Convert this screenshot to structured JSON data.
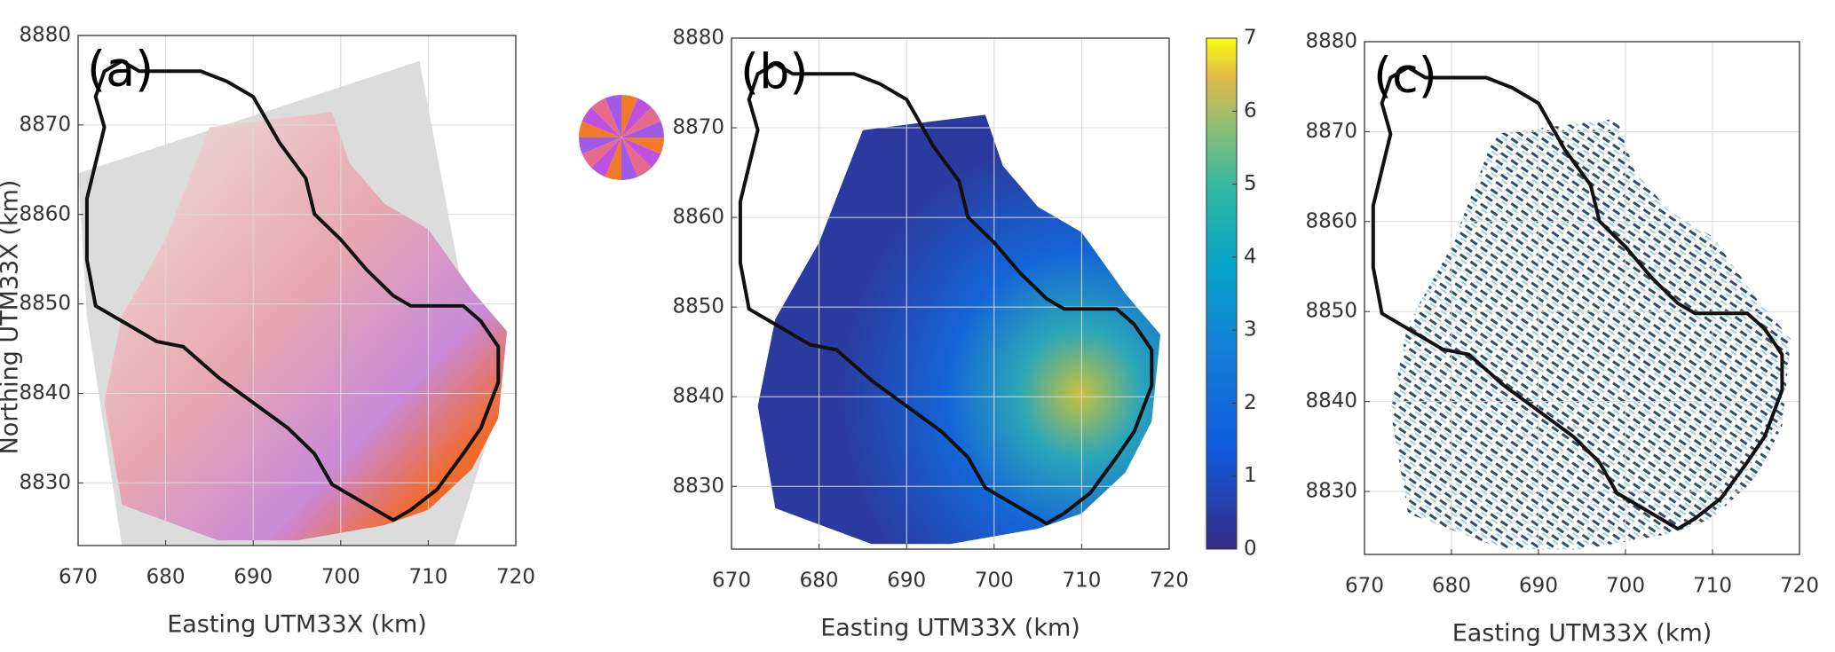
{
  "chart_data": [
    {
      "type": "map",
      "label": "(a)",
      "xlabel": "Easting UTM33X (km)",
      "ylabel": "Northing UTM33X (km)",
      "xlim": [
        670,
        720
      ],
      "ylim": [
        8823,
        8880
      ],
      "xticks": [
        670,
        680,
        690,
        700,
        710,
        720
      ],
      "yticks": [
        8830,
        8840,
        8850,
        8860,
        8870,
        8880
      ],
      "grid": true
    },
    {
      "type": "map",
      "label": "(b)",
      "xlabel": "Easting UTM33X (km)",
      "xlim": [
        670,
        720
      ],
      "ylim": [
        8823,
        8880
      ],
      "xticks": [
        670,
        680,
        690,
        700,
        710,
        720
      ],
      "yticks": [
        8830,
        8840,
        8850,
        8860,
        8870,
        8880
      ],
      "grid": true,
      "colorbar": {
        "ylim": [
          0,
          7
        ],
        "yticks": [
          0,
          1,
          2,
          3,
          4,
          5,
          6,
          7
        ]
      }
    },
    {
      "type": "map",
      "label": "(c)",
      "xlabel": "Easting UTM33X (km)",
      "xlim": [
        670,
        720
      ],
      "ylim": [
        8823,
        8880
      ],
      "xticks": [
        670,
        680,
        690,
        700,
        710,
        720
      ],
      "yticks": [
        8830,
        8840,
        8850,
        8860,
        8870,
        8880
      ],
      "grid": true
    }
  ]
}
